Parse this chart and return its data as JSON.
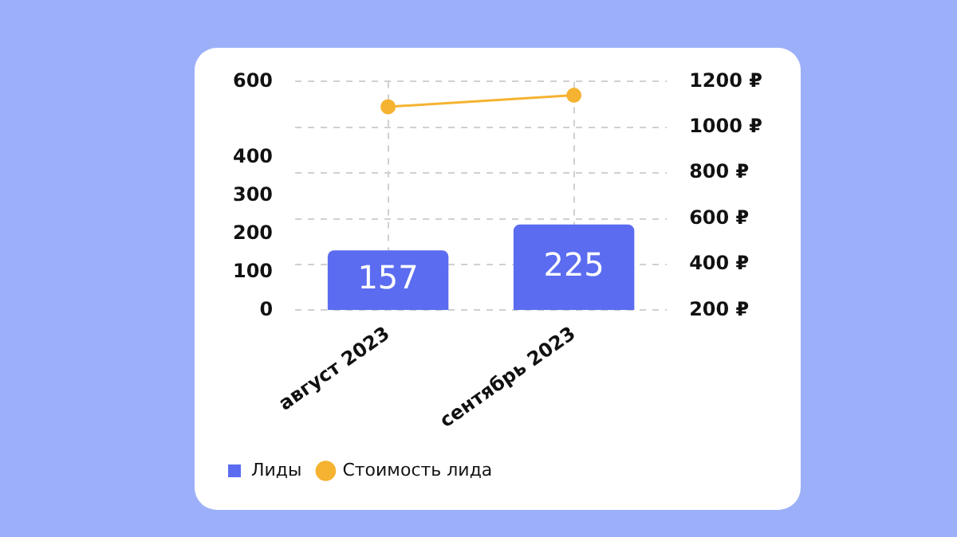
{
  "chart_data": {
    "type": "bar",
    "categories": [
      "август 2023",
      "сентябрь 2023"
    ],
    "series": [
      {
        "name": "Лиды",
        "color": "#5b6cf0",
        "values": [
          157,
          225
        ]
      },
      {
        "name": "Стоимость лида",
        "type": "line",
        "axis": "y2",
        "color": "#f5b331",
        "values": [
          1090,
          1140
        ]
      }
    ],
    "ylim": [
      0,
      600
    ],
    "yticks": [
      0,
      100,
      200,
      300,
      400,
      600
    ],
    "y2lim": [
      200,
      1200
    ],
    "y2ticks": [
      {
        "value": 200,
        "label": "200 ₽"
      },
      {
        "value": 400,
        "label": "400 ₽"
      },
      {
        "value": 600,
        "label": "600 ₽"
      },
      {
        "value": 800,
        "label": "800 ₽"
      },
      {
        "value": 1000,
        "label": "1000 ₽"
      },
      {
        "value": 1200,
        "label": "1200 ₽"
      }
    ],
    "grid": true,
    "legend": "bottom left",
    "marker": "circle",
    "line_style": "solid",
    "value_labels": [
      "157",
      "225"
    ]
  }
}
